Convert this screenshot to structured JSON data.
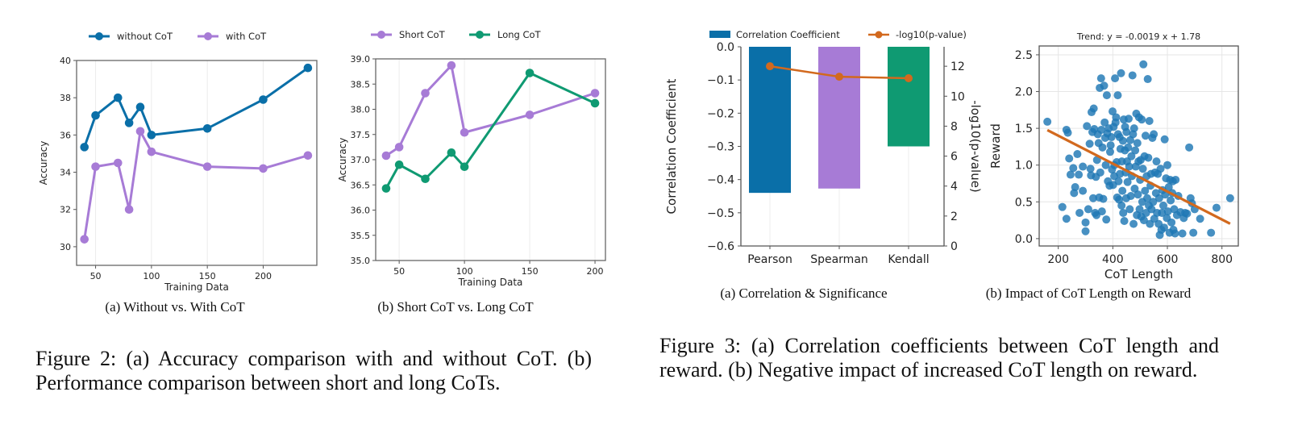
{
  "figure2": {
    "caption": "Figure 2: (a) Accuracy comparison with and without CoT. (b) Performance comparison between short and long CoTs.",
    "subcaptions": [
      "(a) Without vs. With CoT",
      "(b) Short CoT vs. Long CoT"
    ]
  },
  "figure3": {
    "caption": "Figure 3: (a) Correlation coefficients between CoT length and reward. (b) Negative impact of increased CoT length on reward.",
    "subcaptions": [
      "(a) Correlation & Significance",
      "(b) Impact of CoT Length on Reward"
    ]
  },
  "chart_data": [
    {
      "id": "fig2a",
      "type": "line",
      "title": "",
      "xlabel": "Training Data",
      "ylabel": "Accuracy",
      "x": [
        40,
        50,
        70,
        80,
        90,
        100,
        150,
        200,
        240
      ],
      "xlim": [
        33,
        248
      ],
      "ylim": [
        29,
        40
      ],
      "xticks": [
        50,
        100,
        150,
        200
      ],
      "yticks": [
        30,
        32,
        34,
        36,
        38,
        40
      ],
      "grid": "x",
      "legend": "top-center",
      "series": [
        {
          "name": "without CoT",
          "color": "#0a6fa8",
          "values": [
            35.35,
            37.05,
            38.0,
            36.65,
            37.5,
            36.0,
            36.35,
            37.9,
            39.6
          ]
        },
        {
          "name": "with CoT",
          "color": "#a77bd6",
          "values": [
            30.4,
            34.3,
            34.5,
            32.0,
            36.2,
            35.1,
            34.3,
            34.2,
            34.9
          ]
        }
      ]
    },
    {
      "id": "fig2b",
      "type": "line",
      "title": "",
      "xlabel": "Training Data",
      "ylabel": "Accuracy",
      "x": [
        40,
        50,
        70,
        90,
        100,
        150,
        200
      ],
      "xlim": [
        32,
        208
      ],
      "ylim": [
        35.0,
        39.0
      ],
      "xticks": [
        50,
        100,
        150,
        200
      ],
      "yticks": [
        "35.0",
        "35.5",
        "36.0",
        "36.5",
        "37.0",
        "37.5",
        "38.0",
        "38.5",
        "39.0"
      ],
      "grid": "x",
      "legend": "top-center",
      "series": [
        {
          "name": "Short CoT",
          "color": "#a77bd6",
          "values": [
            37.08,
            37.25,
            38.32,
            38.87,
            37.54,
            37.89,
            38.32
          ]
        },
        {
          "name": "Long CoT",
          "color": "#0f9a72",
          "values": [
            36.43,
            36.9,
            36.62,
            37.14,
            36.86,
            38.72,
            38.12
          ]
        }
      ]
    },
    {
      "id": "fig3a",
      "type": "bar",
      "title": "",
      "xlabel": "",
      "ylabel": "Correlation Coefficient",
      "y2label": "-log10(p-value)",
      "categories": [
        "Pearson",
        "Spearman",
        "Kendall"
      ],
      "bar_colors": [
        "#0a6fa8",
        "#a77bd6",
        "#0f9a72"
      ],
      "ylim": [
        -0.6,
        0.0
      ],
      "y2lim": [
        0,
        13.3
      ],
      "yticks": [
        "0.0",
        "−0.1",
        "−0.2",
        "−0.3",
        "−0.4",
        "−0.5",
        "−0.6"
      ],
      "y2ticks": [
        0,
        2,
        4,
        6,
        8,
        10,
        12
      ],
      "legend": "top",
      "series": [
        {
          "name": "Correlation Coefficient",
          "kind": "bar",
          "values": [
            -0.44,
            -0.427,
            -0.3
          ]
        },
        {
          "name": "-log10(p-value)",
          "kind": "line",
          "axis": "right",
          "color": "#d2691e",
          "values": [
            12.0,
            11.3,
            11.2
          ]
        }
      ]
    },
    {
      "id": "fig3b",
      "type": "scatter",
      "title": "Trend: y = -0.0019 x + 1.78",
      "xlabel": "CoT Length",
      "ylabel": "Reward",
      "xlim": [
        130,
        860
      ],
      "ylim": [
        -0.1,
        2.62
      ],
      "xticks": [
        200,
        400,
        600,
        800
      ],
      "yticks": [
        "0.0",
        "0.5",
        "1.0",
        "1.5",
        "2.0",
        "2.5"
      ],
      "grid": "both",
      "point_color": "#1f77b4",
      "trend": {
        "slope": -0.0019,
        "intercept": 1.78,
        "x_range": [
          160,
          830
        ],
        "color": "#d2691e"
      },
      "points": [
        [
          160,
          1.59
        ],
        [
          215,
          0.43
        ],
        [
          230,
          1.48
        ],
        [
          235,
          1.44
        ],
        [
          240,
          1.09
        ],
        [
          230,
          0.27
        ],
        [
          245,
          0.87
        ],
        [
          255,
          0.96
        ],
        [
          258,
          0.62
        ],
        [
          262,
          0.7
        ],
        [
          270,
          1.15
        ],
        [
          275,
          0.87
        ],
        [
          278,
          0.35
        ],
        [
          290,
          0.65
        ],
        [
          290,
          0.98
        ],
        [
          300,
          0.22
        ],
        [
          300,
          0.1
        ],
        [
          305,
          1.53
        ],
        [
          310,
          0.4
        ],
        [
          315,
          1.29
        ],
        [
          318,
          0.95
        ],
        [
          320,
          0.86
        ],
        [
          322,
          1.72
        ],
        [
          325,
          1.45
        ],
        [
          328,
          0.55
        ],
        [
          330,
          1.77
        ],
        [
          332,
          1.49
        ],
        [
          335,
          0.35
        ],
        [
          338,
          0.84
        ],
        [
          340,
          0.32
        ],
        [
          342,
          1.07
        ],
        [
          345,
          1.42
        ],
        [
          348,
          1.3
        ],
        [
          350,
          0.56
        ],
        [
          352,
          2.05
        ],
        [
          354,
          0.9
        ],
        [
          357,
          2.18
        ],
        [
          358,
          1.48
        ],
        [
          360,
          0.37
        ],
        [
          362,
          1.24
        ],
        [
          365,
          0.54
        ],
        [
          368,
          2.08
        ],
        [
          370,
          1.58
        ],
        [
          372,
          1.37
        ],
        [
          374,
          1.0
        ],
        [
          376,
          0.26
        ],
        [
          378,
          1.95
        ],
        [
          380,
          1.43
        ],
        [
          382,
          0.78
        ],
        [
          385,
          1.5
        ],
        [
          388,
          0.72
        ],
        [
          390,
          1.18
        ],
        [
          392,
          1.27
        ],
        [
          395,
          1.38
        ],
        [
          397,
          0.94
        ],
        [
          399,
          1.73
        ],
        [
          401,
          0.73
        ],
        [
          403,
          1.52
        ],
        [
          405,
          0.85
        ],
        [
          406,
          1.0
        ],
        [
          408,
          2.18
        ],
        [
          410,
          1.58
        ],
        [
          412,
          1.65
        ],
        [
          414,
          1.04
        ],
        [
          416,
          0.56
        ],
        [
          418,
          1.95
        ],
        [
          419,
          1.42
        ],
        [
          421,
          0.78
        ],
        [
          423,
          0.53
        ],
        [
          425,
          1.38
        ],
        [
          426,
          0.88
        ],
        [
          428,
          1.22
        ],
        [
          430,
          2.25
        ],
        [
          432,
          0.45
        ],
        [
          433,
          1.05
        ],
        [
          435,
          0.65
        ],
        [
          437,
          1.33
        ],
        [
          438,
          0.35
        ],
        [
          440,
          1.62
        ],
        [
          442,
          0.24
        ],
        [
          444,
          1.2
        ],
        [
          445,
          1.52
        ],
        [
          447,
          0.9
        ],
        [
          449,
          0.55
        ],
        [
          450,
          1.45
        ],
        [
          452,
          1.05
        ],
        [
          454,
          0.77
        ],
        [
          456,
          1.24
        ],
        [
          458,
          1.63
        ],
        [
          460,
          0.98
        ],
        [
          462,
          0.4
        ],
        [
          464,
          1.34
        ],
        [
          466,
          0.58
        ],
        [
          468,
          1.12
        ],
        [
          470,
          0.85
        ],
        [
          472,
          2.22
        ],
        [
          474,
          1.42
        ],
        [
          476,
          0.2
        ],
        [
          478,
          1.5
        ],
        [
          480,
          0.68
        ],
        [
          482,
          1.2
        ],
        [
          484,
          0.98
        ],
        [
          486,
          1.7
        ],
        [
          488,
          0.32
        ],
        [
          490,
          1.3
        ],
        [
          492,
          0.6
        ],
        [
          494,
          1.05
        ],
        [
          496,
          1.65
        ],
        [
          498,
          0.4
        ],
        [
          500,
          0.8
        ],
        [
          502,
          1.07
        ],
        [
          504,
          0.3
        ],
        [
          506,
          1.62
        ],
        [
          508,
          0.5
        ],
        [
          510,
          0.95
        ],
        [
          512,
          2.37
        ],
        [
          514,
          0.25
        ],
        [
          516,
          1.12
        ],
        [
          518,
          0.65
        ],
        [
          520,
          1.4
        ],
        [
          522,
          0.35
        ],
        [
          524,
          0.85
        ],
        [
          526,
          0.55
        ],
        [
          528,
          2.17
        ],
        [
          530,
          1.1
        ],
        [
          532,
          0.45
        ],
        [
          534,
          1.6
        ],
        [
          536,
          0.2
        ],
        [
          538,
          0.72
        ],
        [
          540,
          0.88
        ],
        [
          542,
          0.4
        ],
        [
          545,
          1.37
        ],
        [
          548,
          0.5
        ],
        [
          550,
          1.42
        ],
        [
          552,
          0.27
        ],
        [
          555,
          0.9
        ],
        [
          558,
          0.62
        ],
        [
          560,
          1.05
        ],
        [
          562,
          0.35
        ],
        [
          565,
          0.88
        ],
        [
          568,
          0.2
        ],
        [
          570,
          0.55
        ],
        [
          572,
          0.05
        ],
        [
          575,
          0.95
        ],
        [
          578,
          0.12
        ],
        [
          580,
          0.35
        ],
        [
          582,
          0.66
        ],
        [
          585,
          0.45
        ],
        [
          588,
          0.15
        ],
        [
          590,
          1.35
        ],
        [
          592,
          0.6
        ],
        [
          595,
          0.82
        ],
        [
          598,
          0.28
        ],
        [
          600,
          1.0
        ],
        [
          602,
          0.37
        ],
        [
          605,
          0.7
        ],
        [
          608,
          0.08
        ],
        [
          610,
          0.8
        ],
        [
          612,
          0.52
        ],
        [
          615,
          0.22
        ],
        [
          618,
          0.62
        ],
        [
          620,
          0.78
        ],
        [
          622,
          0.12
        ],
        [
          625,
          0.4
        ],
        [
          628,
          0.07
        ],
        [
          630,
          0.8
        ],
        [
          635,
          0.32
        ],
        [
          640,
          0.58
        ],
        [
          648,
          0.36
        ],
        [
          655,
          0.07
        ],
        [
          660,
          0.28
        ],
        [
          665,
          0.35
        ],
        [
          672,
          0.34
        ],
        [
          680,
          1.24
        ],
        [
          685,
          0.55
        ],
        [
          690,
          0.48
        ],
        [
          695,
          0.08
        ],
        [
          700,
          0.4
        ],
        [
          720,
          0.27
        ],
        [
          760,
          0.08
        ],
        [
          780,
          0.42
        ],
        [
          830,
          0.55
        ]
      ]
    }
  ]
}
